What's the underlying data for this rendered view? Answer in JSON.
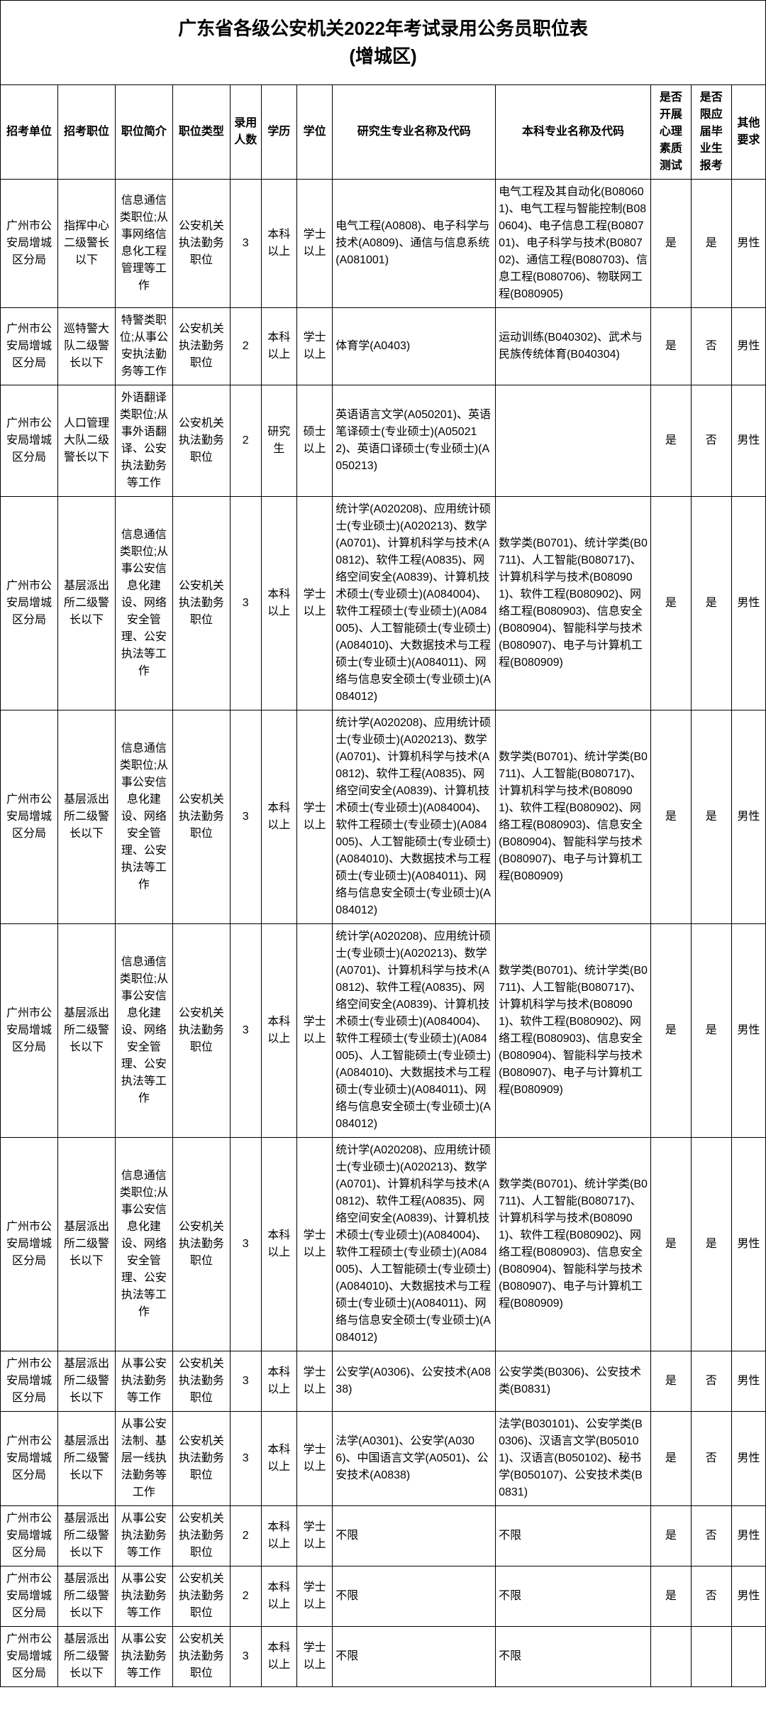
{
  "title_line1": "广东省各级公安机关2022年考试录用公务员职位表",
  "title_line2": "(增城区)",
  "headers": {
    "unit": "招考单位",
    "position": "招考职位",
    "desc": "职位简介",
    "type": "职位类型",
    "num": "录用人数",
    "edu": "学历",
    "degree": "学位",
    "grad_major": "研究生专业名称及代码",
    "bsc_major": "本科专业名称及代码",
    "psych": "是否开展心理素质测试",
    "fresh": "是否限应届毕业生报考",
    "other": "其他要求"
  },
  "rows": [
    {
      "unit": "广州市公安局增城区分局",
      "position": "指挥中心二级警长以下",
      "desc": "信息通信类职位;从事网络信息化工程管理等工作",
      "type": "公安机关执法勤务职位",
      "num": "3",
      "edu": "本科以上",
      "degree": "学士以上",
      "grad": "电气工程(A0808)、电子科学与技术(A0809)、通信与信息系统(A081001)",
      "bsc": "电气工程及其自动化(B080601)、电气工程与智能控制(B080604)、电子信息工程(B080701)、电子科学与技术(B080702)、通信工程(B080703)、信息工程(B080706)、物联网工程(B080905)",
      "psych": "是",
      "fresh": "是",
      "other": "男性"
    },
    {
      "unit": "广州市公安局增城区分局",
      "position": "巡特警大队二级警长以下",
      "desc": "特警类职位;从事公安执法勤务等工作",
      "type": "公安机关执法勤务职位",
      "num": "2",
      "edu": "本科以上",
      "degree": "学士以上",
      "grad": "体育学(A0403)",
      "bsc": "运动训练(B040302)、武术与民族传统体育(B040304)",
      "psych": "是",
      "fresh": "否",
      "other": "男性"
    },
    {
      "unit": "广州市公安局增城区分局",
      "position": "人口管理大队二级警长以下",
      "desc": "外语翻译类职位;从事外语翻译、公安执法勤务等工作",
      "type": "公安机关执法勤务职位",
      "num": "2",
      "edu": "研究生",
      "degree": "硕士以上",
      "grad": "英语语言文学(A050201)、英语笔译硕士(专业硕士)(A050212)、英语口译硕士(专业硕士)(A050213)",
      "bsc": "",
      "psych": "是",
      "fresh": "否",
      "other": "男性"
    },
    {
      "unit": "广州市公安局增城区分局",
      "position": "基层派出所二级警长以下",
      "desc": "信息通信类职位;从事公安信息化建设、网络安全管理、公安执法等工作",
      "type": "公安机关执法勤务职位",
      "num": "3",
      "edu": "本科以上",
      "degree": "学士以上",
      "grad": "统计学(A020208)、应用统计硕士(专业硕士)(A020213)、数学(A0701)、计算机科学与技术(A0812)、软件工程(A0835)、网络空间安全(A0839)、计算机技术硕士(专业硕士)(A084004)、软件工程硕士(专业硕士)(A084005)、人工智能硕士(专业硕士)(A084010)、大数据技术与工程硕士(专业硕士)(A084011)、网络与信息安全硕士(专业硕士)(A084012)",
      "bsc": "数学类(B0701)、统计学类(B0711)、人工智能(B080717)、计算机科学与技术(B080901)、软件工程(B080902)、网络工程(B080903)、信息安全(B080904)、智能科学与技术(B080907)、电子与计算机工程(B080909)",
      "psych": "是",
      "fresh": "是",
      "other": "男性"
    },
    {
      "unit": "广州市公安局增城区分局",
      "position": "基层派出所二级警长以下",
      "desc": "信息通信类职位;从事公安信息化建设、网络安全管理、公安执法等工作",
      "type": "公安机关执法勤务职位",
      "num": "3",
      "edu": "本科以上",
      "degree": "学士以上",
      "grad": "统计学(A020208)、应用统计硕士(专业硕士)(A020213)、数学(A0701)、计算机科学与技术(A0812)、软件工程(A0835)、网络空间安全(A0839)、计算机技术硕士(专业硕士)(A084004)、软件工程硕士(专业硕士)(A084005)、人工智能硕士(专业硕士)(A084010)、大数据技术与工程硕士(专业硕士)(A084011)、网络与信息安全硕士(专业硕士)(A084012)",
      "bsc": "数学类(B0701)、统计学类(B0711)、人工智能(B080717)、计算机科学与技术(B080901)、软件工程(B080902)、网络工程(B080903)、信息安全(B080904)、智能科学与技术(B080907)、电子与计算机工程(B080909)",
      "psych": "是",
      "fresh": "是",
      "other": "男性"
    },
    {
      "unit": "广州市公安局增城区分局",
      "position": "基层派出所二级警长以下",
      "desc": "信息通信类职位;从事公安信息化建设、网络安全管理、公安执法等工作",
      "type": "公安机关执法勤务职位",
      "num": "3",
      "edu": "本科以上",
      "degree": "学士以上",
      "grad": "统计学(A020208)、应用统计硕士(专业硕士)(A020213)、数学(A0701)、计算机科学与技术(A0812)、软件工程(A0835)、网络空间安全(A0839)、计算机技术硕士(专业硕士)(A084004)、软件工程硕士(专业硕士)(A084005)、人工智能硕士(专业硕士)(A084010)、大数据技术与工程硕士(专业硕士)(A084011)、网络与信息安全硕士(专业硕士)(A084012)",
      "bsc": "数学类(B0701)、统计学类(B0711)、人工智能(B080717)、计算机科学与技术(B080901)、软件工程(B080902)、网络工程(B080903)、信息安全(B080904)、智能科学与技术(B080907)、电子与计算机工程(B080909)",
      "psych": "是",
      "fresh": "是",
      "other": "男性"
    },
    {
      "unit": "广州市公安局增城区分局",
      "position": "基层派出所二级警长以下",
      "desc": "信息通信类职位;从事公安信息化建设、网络安全管理、公安执法等工作",
      "type": "公安机关执法勤务职位",
      "num": "3",
      "edu": "本科以上",
      "degree": "学士以上",
      "grad": "统计学(A020208)、应用统计硕士(专业硕士)(A020213)、数学(A0701)、计算机科学与技术(A0812)、软件工程(A0835)、网络空间安全(A0839)、计算机技术硕士(专业硕士)(A084004)、软件工程硕士(专业硕士)(A084005)、人工智能硕士(专业硕士)(A084010)、大数据技术与工程硕士(专业硕士)(A084011)、网络与信息安全硕士(专业硕士)(A084012)",
      "bsc": "数学类(B0701)、统计学类(B0711)、人工智能(B080717)、计算机科学与技术(B080901)、软件工程(B080902)、网络工程(B080903)、信息安全(B080904)、智能科学与技术(B080907)、电子与计算机工程(B080909)",
      "psych": "是",
      "fresh": "是",
      "other": "男性"
    },
    {
      "unit": "广州市公安局增城区分局",
      "position": "基层派出所二级警长以下",
      "desc": "从事公安执法勤务等工作",
      "type": "公安机关执法勤务职位",
      "num": "3",
      "edu": "本科以上",
      "degree": "学士以上",
      "grad": "公安学(A0306)、公安技术(A0838)",
      "bsc": "公安学类(B0306)、公安技术类(B0831)",
      "psych": "是",
      "fresh": "否",
      "other": "男性"
    },
    {
      "unit": "广州市公安局增城区分局",
      "position": "基层派出所二级警长以下",
      "desc": "从事公安法制、基层一线执法勤务等工作",
      "type": "公安机关执法勤务职位",
      "num": "3",
      "edu": "本科以上",
      "degree": "学士以上",
      "grad": "法学(A0301)、公安学(A0306)、中国语言文学(A0501)、公安技术(A0838)",
      "bsc": "法学(B030101)、公安学类(B0306)、汉语言文学(B050101)、汉语言(B050102)、秘书学(B050107)、公安技术类(B0831)",
      "psych": "是",
      "fresh": "否",
      "other": "男性"
    },
    {
      "unit": "广州市公安局增城区分局",
      "position": "基层派出所二级警长以下",
      "desc": "从事公安执法勤务等工作",
      "type": "公安机关执法勤务职位",
      "num": "2",
      "edu": "本科以上",
      "degree": "学士以上",
      "grad": "不限",
      "bsc": "不限",
      "psych": "是",
      "fresh": "否",
      "other": "男性"
    },
    {
      "unit": "广州市公安局增城区分局",
      "position": "基层派出所二级警长以下",
      "desc": "从事公安执法勤务等工作",
      "type": "公安机关执法勤务职位",
      "num": "2",
      "edu": "本科以上",
      "degree": "学士以上",
      "grad": "不限",
      "bsc": "不限",
      "psych": "是",
      "fresh": "否",
      "other": "男性"
    },
    {
      "unit": "广州市公安局增城区分局",
      "position": "基层派出所二级警长以下",
      "desc": "从事公安执法勤务等工作",
      "type": "公安机关执法勤务职位",
      "num": "3",
      "edu": "本科以上",
      "degree": "学士以上",
      "grad": "不限",
      "bsc": "不限",
      "psych": "",
      "fresh": "",
      "other": ""
    }
  ]
}
